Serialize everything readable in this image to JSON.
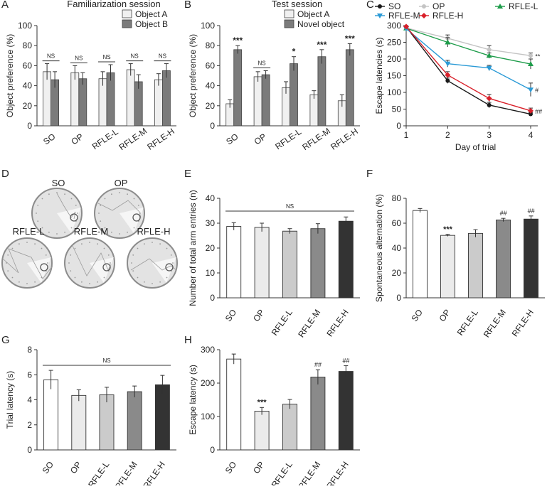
{
  "figure": {
    "panel_letters": [
      "A",
      "B",
      "C",
      "D",
      "E",
      "F",
      "G",
      "H"
    ]
  },
  "mwm_paths": {
    "panel": "D",
    "groups": [
      "SO",
      "OP",
      "RFLE-L",
      "RFLE-M",
      "RFLE-H"
    ]
  },
  "chart_data": [
    {
      "panel": "A",
      "type": "bar",
      "title": "Familiarization session",
      "ylabel": "Object preference (%)",
      "xlabel": "",
      "ylim": [
        0,
        100
      ],
      "yticks": [
        0,
        20,
        40,
        60,
        80,
        100
      ],
      "categories": [
        "SO",
        "OP",
        "RFLE-L",
        "RFLE-M",
        "RFLE-H"
      ],
      "series": [
        {
          "name": "Object A",
          "color": "#f0f0f0",
          "values": [
            54,
            53,
            47,
            56,
            46
          ],
          "errors": [
            8,
            7,
            7,
            6,
            6
          ]
        },
        {
          "name": "Object B",
          "color": "#7b7b7b",
          "values": [
            46,
            47,
            53,
            44,
            55
          ],
          "errors": [
            8,
            6,
            8,
            7,
            7
          ]
        }
      ],
      "annotations": [
        "NS",
        "NS",
        "NS",
        "NS",
        "NS"
      ],
      "legend": "top-right"
    },
    {
      "panel": "B",
      "type": "bar",
      "title": "Test session",
      "ylabel": "Object preference (%)",
      "xlabel": "",
      "ylim": [
        0,
        100
      ],
      "yticks": [
        0,
        20,
        40,
        60,
        80,
        100
      ],
      "categories": [
        "SO",
        "OP",
        "RFLE-L",
        "RFLE-M",
        "RFLE-H"
      ],
      "series": [
        {
          "name": "Object A",
          "color": "#f0f0f0",
          "values": [
            22,
            49,
            38,
            31,
            25
          ],
          "errors": [
            4,
            5,
            6,
            4,
            6
          ]
        },
        {
          "name": "Novel object",
          "color": "#7b7b7b",
          "values": [
            76,
            51,
            62,
            69,
            76
          ],
          "errors": [
            4,
            4,
            7,
            7,
            6
          ]
        }
      ],
      "annotations": [
        "***",
        "NS",
        "*",
        "***",
        "***"
      ],
      "legend": "top-right"
    },
    {
      "panel": "C",
      "type": "line",
      "title": "",
      "ylabel": "Escape latencies (s)",
      "xlabel": "Day of trial",
      "x": [
        1,
        2,
        3,
        4
      ],
      "xlim": [
        1,
        4
      ],
      "ylim": [
        0,
        300
      ],
      "yticks": [
        0,
        50,
        100,
        150,
        200,
        250,
        300
      ],
      "series": [
        {
          "name": "SO",
          "color": "#1a1a1a",
          "marker": "circle",
          "values": [
            296,
            135,
            62,
            35
          ],
          "errors": [
            3,
            8,
            8,
            5
          ],
          "annotation": ""
        },
        {
          "name": "OP",
          "color": "#c4c4c4",
          "marker": "circle",
          "values": [
            293,
            262,
            228,
            210
          ],
          "errors": [
            4,
            10,
            12,
            8
          ],
          "annotation": "**"
        },
        {
          "name": "RFLE-L",
          "color": "#1e9c4a",
          "marker": "triangle",
          "values": [
            292,
            250,
            210,
            185
          ],
          "errors": [
            4,
            14,
            8,
            15
          ],
          "annotation": ""
        },
        {
          "name": "RFLE-M",
          "color": "#2a9ad6",
          "marker": "triangle-down",
          "values": [
            291,
            186,
            173,
            108
          ],
          "errors": [
            4,
            10,
            8,
            20
          ],
          "annotation": "#"
        },
        {
          "name": "RFLE-H",
          "color": "#d9202a",
          "marker": "diamond",
          "values": [
            297,
            152,
            82,
            45
          ],
          "errors": [
            3,
            10,
            12,
            8
          ],
          "annotation": "##"
        }
      ],
      "legend": "top"
    },
    {
      "panel": "E",
      "type": "bar",
      "title": "",
      "ylabel": "Number of total arm entries (n)",
      "xlabel": "",
      "ylim": [
        0,
        40
      ],
      "yticks": [
        0,
        10,
        20,
        30,
        40
      ],
      "categories": [
        "SO",
        "OP",
        "RFLE-L",
        "RFLE-M",
        "RFLE-H"
      ],
      "colors": [
        "#ffffff",
        "#ebebeb",
        "#cbcbcb",
        "#8a8a8a",
        "#333333"
      ],
      "values": [
        28.7,
        28.3,
        26.8,
        27.8,
        30.8
      ],
      "errors": [
        1.5,
        1.7,
        1.0,
        2.0,
        1.7
      ],
      "annotations": [
        "NS",
        "",
        "",
        "",
        ""
      ]
    },
    {
      "panel": "F",
      "type": "bar",
      "title": "",
      "ylabel": "Spontaneous alternation (%)",
      "xlabel": "",
      "ylim": [
        0,
        80
      ],
      "yticks": [
        0,
        20,
        40,
        60,
        80
      ],
      "categories": [
        "SO",
        "OP",
        "RFLE-L",
        "RFLE-M",
        "RFLE-H"
      ],
      "colors": [
        "#ffffff",
        "#ebebeb",
        "#cbcbcb",
        "#8a8a8a",
        "#333333"
      ],
      "values": [
        70.2,
        50.2,
        51.8,
        62.6,
        63.3
      ],
      "errors": [
        1.6,
        0.8,
        3.0,
        1.3,
        2.5
      ],
      "annotations": [
        "",
        "***",
        "",
        "##",
        "##"
      ]
    },
    {
      "panel": "G",
      "type": "bar",
      "title": "",
      "ylabel": "Trial latency (s)",
      "xlabel": "",
      "ylim": [
        0,
        8
      ],
      "yticks": [
        0,
        2,
        4,
        6,
        8
      ],
      "categories": [
        "SO",
        "OP",
        "RFLE-L",
        "RFLE-M",
        "RFLE-H"
      ],
      "colors": [
        "#ffffff",
        "#ebebeb",
        "#cbcbcb",
        "#8a8a8a",
        "#333333"
      ],
      "values": [
        5.6,
        4.35,
        4.4,
        4.65,
        5.2
      ],
      "errors": [
        0.75,
        0.45,
        0.6,
        0.45,
        0.75
      ],
      "annotations": [
        "NS",
        "",
        "",
        "",
        ""
      ]
    },
    {
      "panel": "H",
      "type": "bar",
      "title": "",
      "ylabel": "Escape latency (s)",
      "xlabel": "",
      "ylim": [
        0,
        300
      ],
      "yticks": [
        0,
        100,
        200,
        300
      ],
      "categories": [
        "SO",
        "OP",
        "RFLE-L",
        "RFLE-M",
        "RFLE-H"
      ],
      "colors": [
        "#ffffff",
        "#ebebeb",
        "#cbcbcb",
        "#8a8a8a",
        "#333333"
      ],
      "values": [
        272,
        116,
        137,
        218,
        235
      ],
      "errors": [
        15,
        11,
        14,
        22,
        17
      ],
      "annotations": [
        "",
        "***",
        "",
        "##",
        "##"
      ]
    }
  ]
}
